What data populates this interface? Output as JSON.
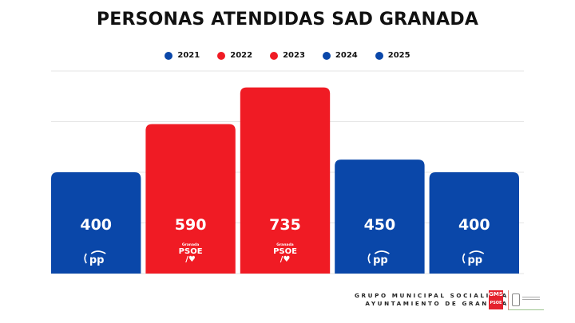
{
  "chart_data": {
    "type": "bar",
    "title": "PERSONAS ATENDIDAS SAD GRANADA",
    "xlabel": "",
    "ylabel": "",
    "categories": [
      "2021",
      "2022",
      "2023",
      "2024",
      "2025"
    ],
    "values": [
      400,
      590,
      735,
      450,
      400
    ],
    "data_labels": [
      "400",
      "590",
      "735",
      "450",
      "400"
    ],
    "bar_colors": [
      "#0a47a9",
      "#f01b24",
      "#f01b24",
      "#0a47a9",
      "#0a47a9"
    ],
    "bar_logos": [
      "pp",
      "psoe",
      "psoe",
      "pp",
      "pp"
    ],
    "ylim": [
      0,
      800
    ],
    "gridlines": [
      200,
      400,
      600,
      800
    ],
    "grid": true,
    "y_tick_labels_visible": false,
    "legend_position": "top-center",
    "legend": [
      {
        "label": "2021",
        "color": "#0a47a9"
      },
      {
        "label": "2022",
        "color": "#f01b24"
      },
      {
        "label": "2023",
        "color": "#f01b24"
      },
      {
        "label": "2024",
        "color": "#0a47a9"
      },
      {
        "label": "2025",
        "color": "#0a47a9"
      }
    ]
  },
  "logos": {
    "pp_text": "pp",
    "psoe_small": "Granada",
    "psoe_text": "PSOE",
    "psoe_mark": "/♥"
  },
  "footer": {
    "line1": "GRUPO MUNICIPAL SOCIALISTA",
    "line2": "AYUNTAMIENTO DE GRANADA",
    "gms_logo": "GMS",
    "gms_sub": "PSOE"
  }
}
